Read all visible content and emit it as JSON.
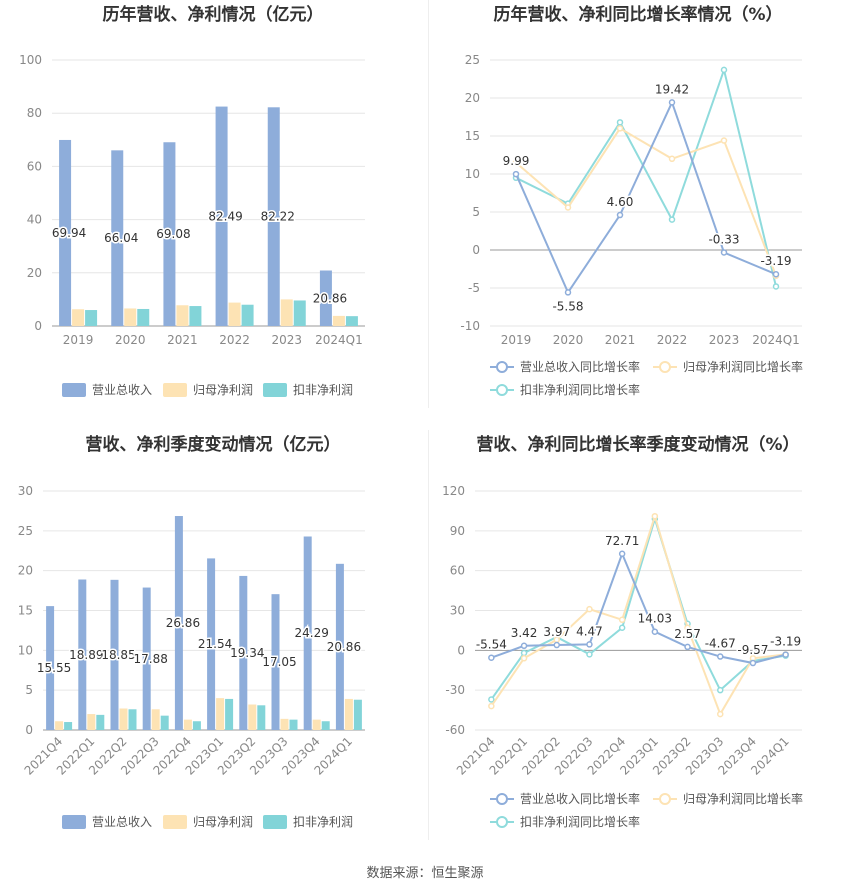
{
  "colors": {
    "revenue": "#8eadda",
    "parent_profit": "#fde3b4",
    "deducted_profit": "#82d4d8",
    "revenue_line": "#8eadda",
    "parent_line": "#fde3b4",
    "deducted_line": "#8fdbdc",
    "grid": "#e6e6e6",
    "axis_text": "#888888",
    "title": "#333333"
  },
  "source": "数据来源：恒生聚源",
  "chart_data": [
    {
      "id": "annual_bar",
      "type": "bar",
      "title": "历年营收、净利情况（亿元）",
      "categories": [
        "2019",
        "2020",
        "2021",
        "2022",
        "2023",
        "2024Q1"
      ],
      "ylim": [
        0,
        100
      ],
      "yticks": [
        "0",
        "20",
        "40",
        "60",
        "80",
        "100"
      ],
      "grid": true,
      "legend": "bottom",
      "series": [
        {
          "name": "营业总收入",
          "values": [
            69.94,
            66.04,
            69.08,
            82.49,
            82.22,
            20.86
          ],
          "labels": [
            "69.94",
            "66.04",
            "69.08",
            "82.49",
            "82.22",
            "20.86"
          ]
        },
        {
          "name": "归母净利润",
          "values": [
            6.3,
            6.6,
            7.8,
            8.8,
            10.0,
            3.8
          ]
        },
        {
          "name": "扣非净利润",
          "values": [
            6.0,
            6.4,
            7.5,
            8.0,
            9.6,
            3.7
          ]
        }
      ]
    },
    {
      "id": "annual_line",
      "type": "line",
      "title": "历年营收、净利同比增长率情况（%）",
      "categories": [
        "2019",
        "2020",
        "2021",
        "2022",
        "2023",
        "2024Q1"
      ],
      "ylim": [
        -10,
        25
      ],
      "yticks": [
        "-10",
        "-5",
        "0",
        "5",
        "10",
        "15",
        "20",
        "25"
      ],
      "grid": true,
      "legend": "bottom",
      "series": [
        {
          "name": "营业总收入同比增长率",
          "values": [
            9.99,
            -5.58,
            4.6,
            19.42,
            -0.33,
            -3.19
          ],
          "labels": [
            "9.99",
            "-5.58",
            "4.60",
            "19.42",
            "-0.33",
            "-3.19"
          ]
        },
        {
          "name": "归母净利润同比增长率",
          "values": [
            11.5,
            5.6,
            16.0,
            12.0,
            14.4,
            -3.4
          ]
        },
        {
          "name": "扣非净利润同比增长率",
          "values": [
            9.5,
            6.1,
            16.8,
            4.0,
            23.7,
            -4.8
          ]
        }
      ]
    },
    {
      "id": "quarter_bar",
      "type": "bar",
      "title": "营收、净利季度变动情况（亿元）",
      "categories": [
        "2021Q4",
        "2022Q1",
        "2022Q2",
        "2022Q3",
        "2022Q4",
        "2023Q1",
        "2023Q2",
        "2023Q3",
        "2023Q4",
        "2024Q1"
      ],
      "ylim": [
        0,
        30
      ],
      "yticks": [
        "0",
        "5",
        "10",
        "15",
        "20",
        "25",
        "30"
      ],
      "grid": true,
      "legend": "bottom",
      "series": [
        {
          "name": "营业总收入",
          "values": [
            15.55,
            18.89,
            18.85,
            17.88,
            26.86,
            21.54,
            19.34,
            17.05,
            24.29,
            20.86
          ],
          "labels": [
            "15.55",
            "18.89",
            "18.85",
            "17.88",
            "26.86",
            "21.54",
            "19.34",
            "17.05",
            "24.29",
            "20.86"
          ]
        },
        {
          "name": "归母净利润",
          "values": [
            1.1,
            2.0,
            2.7,
            2.6,
            1.3,
            4.0,
            3.2,
            1.4,
            1.3,
            3.9
          ]
        },
        {
          "name": "扣非净利润",
          "values": [
            1.0,
            1.9,
            2.6,
            1.8,
            1.1,
            3.9,
            3.1,
            1.3,
            1.1,
            3.8
          ]
        }
      ]
    },
    {
      "id": "quarter_line",
      "type": "line",
      "title": "营收、净利同比增长率季度变动情况（%）",
      "categories": [
        "2021Q4",
        "2022Q1",
        "2022Q2",
        "2022Q3",
        "2022Q4",
        "2023Q1",
        "2023Q2",
        "2023Q3",
        "2023Q4",
        "2024Q1"
      ],
      "ylim": [
        -60,
        120
      ],
      "yticks": [
        "-60",
        "-30",
        "0",
        "30",
        "60",
        "90",
        "120"
      ],
      "grid": true,
      "legend": "bottom",
      "series": [
        {
          "name": "营业总收入同比增长率",
          "values": [
            -5.54,
            3.42,
            3.97,
            4.47,
            72.71,
            14.03,
            2.57,
            -4.67,
            -9.57,
            -3.19
          ],
          "labels": [
            "-5.54",
            "3.42",
            "3.97",
            "4.47",
            "72.71",
            "14.03",
            "2.57",
            "-4.67",
            "-9.57",
            "-3.19"
          ]
        },
        {
          "name": "归母净利润同比增长率",
          "values": [
            -42,
            -6,
            8,
            31,
            23,
            101,
            17,
            -48,
            -6,
            -3
          ]
        },
        {
          "name": "扣非净利润同比增长率",
          "values": [
            -37,
            -2,
            10,
            -3,
            17,
            99,
            20,
            -30,
            -8,
            -4
          ]
        }
      ]
    }
  ]
}
